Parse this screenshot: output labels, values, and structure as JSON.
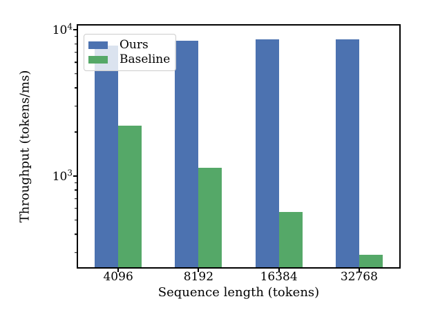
{
  "chart_data": {
    "type": "bar",
    "title": "",
    "xlabel": "Sequence length (tokens)",
    "ylabel": "Throughput (tokens/ms)",
    "categories": [
      "4096",
      "8192",
      "16384",
      "32768"
    ],
    "series": [
      {
        "name": "Ours",
        "color": "#4C72B0",
        "values": [
          7800,
          8400,
          8600,
          8600
        ]
      },
      {
        "name": "Baseline",
        "color": "#55A868",
        "values": [
          2200,
          1140,
          570,
          290
        ]
      }
    ],
    "y_scale": "log",
    "ylim": [
      238,
      10680
    ],
    "y_major_ticks": [
      {
        "value": 1000,
        "mantissa": "10",
        "exponent": "3"
      },
      {
        "value": 10000,
        "mantissa": "10",
        "exponent": "4"
      }
    ],
    "y_minor_ticks": [
      300,
      400,
      500,
      600,
      700,
      800,
      900,
      2000,
      3000,
      4000,
      5000,
      6000,
      7000,
      8000,
      9000
    ],
    "grid": false,
    "legend": {
      "position": "upper left"
    },
    "colors": {
      "spine": "#000000",
      "text": "#000000",
      "legend_border": "#cccccc"
    }
  }
}
